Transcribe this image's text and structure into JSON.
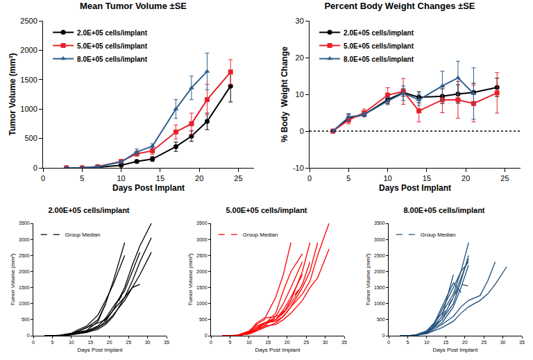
{
  "chart_data": [
    {
      "type": "line",
      "title": "Mean Tumor Volume ±SE",
      "x_label": "Days Post Implant",
      "y_label": "Tumor Volume (mm³)",
      "xlim": [
        0,
        27
      ],
      "xticks": [
        0,
        5,
        10,
        15,
        20,
        25
      ],
      "ylim": [
        0,
        2500
      ],
      "yticks": [
        0,
        500,
        1000,
        1500,
        2000,
        2500
      ],
      "grid": false,
      "legend": "upper left",
      "series": [
        {
          "name": "2.0E+05 cells/implant",
          "color": "#000000",
          "marker": "circle",
          "line_style": "solid",
          "x": [
            3,
            5,
            7,
            10,
            12,
            14,
            17,
            19,
            21,
            24
          ],
          "values": [
            0,
            0,
            10,
            45,
            110,
            150,
            360,
            540,
            790,
            1390
          ],
          "error": [
            0,
            0,
            5,
            10,
            20,
            40,
            80,
            90,
            140,
            270
          ]
        },
        {
          "name": "5.0E+05 cells/implant",
          "color": "#e8202a",
          "marker": "square",
          "line_style": "solid",
          "x": [
            3,
            5,
            7,
            10,
            12,
            14,
            17,
            19,
            21,
            24
          ],
          "values": [
            0,
            0,
            20,
            110,
            240,
            290,
            610,
            750,
            1160,
            1630
          ],
          "error": [
            0,
            0,
            5,
            20,
            40,
            60,
            120,
            180,
            260,
            210
          ]
        },
        {
          "name": "8.0E+05 cells/implant",
          "color": "#2e5e8e",
          "marker": "triangle-up",
          "line_style": "solid",
          "x": [
            3,
            5,
            7,
            10,
            12,
            14,
            17,
            19,
            21
          ],
          "values": [
            0,
            0,
            20,
            100,
            270,
            370,
            1000,
            1360,
            1640
          ],
          "error": [
            0,
            0,
            5,
            20,
            50,
            40,
            160,
            200,
            310
          ]
        }
      ]
    },
    {
      "type": "line",
      "title": "Percent Body Weight Changes ±SE",
      "x_label": "Days Post Implant",
      "y_label": "% Body  Weight Change",
      "xlim": [
        0,
        27
      ],
      "xticks": [
        0,
        5,
        10,
        15,
        20,
        25
      ],
      "ylim": [
        -10,
        30
      ],
      "yticks": [
        -10,
        0,
        10,
        20,
        30
      ],
      "grid": false,
      "legend": "upper left",
      "hline": {
        "y": 0,
        "line_style": "dot"
      },
      "series": [
        {
          "name": "2.0E+05 cells/implant",
          "color": "#000000",
          "marker": "circle",
          "line_style": "solid",
          "x": [
            3,
            5,
            7,
            10,
            12,
            14,
            17,
            19,
            21,
            24
          ],
          "values": [
            0,
            3.5,
            4.5,
            8.5,
            10.5,
            9.2,
            9.5,
            10.1,
            10.5,
            11.9
          ],
          "error": [
            0,
            1,
            0.5,
            1,
            1,
            1.5,
            2,
            2.5,
            2.5,
            2.5
          ]
        },
        {
          "name": "5.0E+05 cells/implant",
          "color": "#e8202a",
          "marker": "square",
          "line_style": "solid",
          "x": [
            3,
            5,
            7,
            10,
            12,
            14,
            17,
            19,
            21,
            24
          ],
          "values": [
            0,
            3,
            5,
            9.8,
            10.8,
            5.5,
            8.5,
            8.5,
            7.5,
            10.4
          ],
          "error": [
            0,
            1,
            1,
            2,
            3.5,
            3,
            3.5,
            5,
            5,
            5.5
          ]
        },
        {
          "name": "8.0E+05 cells/implant",
          "color": "#2e5e8e",
          "marker": "triangle-up",
          "line_style": "solid",
          "x": [
            3,
            5,
            7,
            10,
            12,
            14,
            17,
            19,
            21
          ],
          "values": [
            0,
            3.8,
            4.5,
            8.2,
            10.3,
            8.5,
            12.3,
            14.5,
            10.2
          ],
          "error": [
            0,
            1,
            0.5,
            1,
            2,
            1.5,
            4,
            4.5,
            7
          ]
        }
      ]
    },
    {
      "type": "line",
      "title": "2.00E+05 cells/implant",
      "x_label": "Days Post Implant",
      "y_label": "Tumor Volume (mm³)",
      "xlim": [
        0,
        35
      ],
      "xticks": [
        0,
        5,
        10,
        15,
        20,
        25,
        30,
        35
      ],
      "ylim": [
        0,
        3500
      ],
      "yticks": [
        0,
        500,
        1000,
        1500,
        2000,
        2500,
        3000,
        3500
      ],
      "grid": false,
      "legend": "upper left",
      "color": "#000000",
      "x": [
        3,
        5,
        7,
        10,
        12,
        14,
        17,
        19,
        21,
        24,
        26,
        28,
        31
      ],
      "series": [
        {
          "line_style": "solid",
          "values": [
            0,
            0,
            10,
            60,
            120,
            160,
            450,
            1000,
            null,
            null,
            null,
            null,
            null
          ]
        },
        {
          "line_style": "solid",
          "values": [
            0,
            0,
            10,
            50,
            140,
            250,
            500,
            1000,
            1700,
            2900,
            null,
            null,
            null
          ]
        },
        {
          "line_style": "solid",
          "values": [
            0,
            0,
            20,
            80,
            200,
            300,
            650,
            1100,
            1600,
            2500,
            null,
            null,
            null
          ]
        },
        {
          "line_style": "solid",
          "values": [
            0,
            0,
            10,
            40,
            100,
            150,
            300,
            550,
            900,
            1400,
            2000,
            2600,
            null
          ]
        },
        {
          "line_style": "solid",
          "values": [
            0,
            0,
            10,
            30,
            80,
            120,
            250,
            450,
            800,
            1500,
            2200,
            2800,
            3500
          ]
        },
        {
          "line_style": "solid",
          "values": [
            0,
            0,
            5,
            30,
            60,
            100,
            200,
            350,
            600,
            1200,
            1700,
            2300,
            3050
          ]
        },
        {
          "line_style": "solid",
          "values": [
            0,
            0,
            10,
            40,
            90,
            130,
            250,
            400,
            650,
            1100,
            1500,
            1900,
            2600
          ]
        },
        {
          "line_style": "solid",
          "values": [
            0,
            0,
            10,
            60,
            150,
            250,
            400,
            500,
            800,
            1200,
            1500,
            1600,
            null
          ]
        },
        {
          "name": "Group Median",
          "line_style": "dash",
          "values": [
            0,
            0,
            10,
            40,
            100,
            150,
            300,
            500,
            800,
            1400,
            null,
            null,
            null
          ]
        }
      ]
    },
    {
      "type": "line",
      "title": "5.00E+05 cells/implant",
      "x_label": "Days Post Implant",
      "y_label": "Tumor Volume (mm³)",
      "xlim": [
        0,
        35
      ],
      "xticks": [
        0,
        5,
        10,
        15,
        20,
        25,
        30,
        35
      ],
      "ylim": [
        0,
        3500
      ],
      "yticks": [
        0,
        500,
        1000,
        1500,
        2000,
        2500,
        3000,
        3500
      ],
      "grid": false,
      "legend": "upper left",
      "color": "#ff0000",
      "x": [
        3,
        5,
        7,
        10,
        12,
        14,
        17,
        19,
        21,
        24,
        26,
        28,
        31
      ],
      "series": [
        {
          "line_style": "solid",
          "values": [
            0,
            0,
            20,
            150,
            350,
            500,
            1200,
            1900,
            2900,
            null,
            null,
            null,
            null
          ]
        },
        {
          "line_style": "solid",
          "values": [
            0,
            0,
            20,
            100,
            250,
            350,
            700,
            1400,
            2000,
            2550,
            null,
            null,
            null
          ]
        },
        {
          "line_style": "solid",
          "values": [
            0,
            0,
            10,
            80,
            200,
            300,
            600,
            1000,
            1500,
            2300,
            null,
            null,
            null
          ]
        },
        {
          "line_style": "solid",
          "values": [
            0,
            0,
            10,
            100,
            300,
            400,
            500,
            700,
            1100,
            2000,
            2900,
            null,
            null
          ]
        },
        {
          "line_style": "solid",
          "values": [
            0,
            0,
            10,
            60,
            150,
            250,
            400,
            600,
            900,
            1500,
            2000,
            2900,
            null
          ]
        },
        {
          "line_style": "solid",
          "values": [
            0,
            0,
            10,
            80,
            200,
            400,
            450,
            600,
            900,
            1300,
            1700,
            2500,
            3500
          ]
        },
        {
          "line_style": "solid",
          "values": [
            0,
            0,
            10,
            50,
            150,
            300,
            350,
            500,
            700,
            1100,
            1500,
            1800,
            2700
          ]
        },
        {
          "line_style": "solid",
          "values": [
            0,
            0,
            20,
            120,
            400,
            550,
            600,
            700,
            1000,
            1600,
            2300,
            null,
            null
          ]
        },
        {
          "line_style": "solid",
          "values": [
            0,
            0,
            10,
            60,
            200,
            380,
            500,
            800,
            1200,
            1900,
            null,
            null,
            null
          ]
        },
        {
          "name": "Group Median",
          "line_style": "dash",
          "values": [
            0,
            0,
            10,
            100,
            250,
            400,
            550,
            750,
            1100,
            1600,
            null,
            null,
            null
          ]
        }
      ]
    },
    {
      "type": "line",
      "title": "8.00E+05 cells/implant",
      "x_label": "Days Post Implant",
      "y_label": "Tumor Volume (mm³)",
      "xlim": [
        0,
        35
      ],
      "xticks": [
        0,
        5,
        10,
        15,
        20,
        25,
        30,
        35
      ],
      "ylim": [
        0,
        3500
      ],
      "yticks": [
        0,
        500,
        1000,
        1500,
        2000,
        2500,
        3000,
        3500
      ],
      "grid": false,
      "legend": "upper left",
      "color": "#1f4e78",
      "x": [
        3,
        5,
        7,
        10,
        12,
        14,
        17,
        19,
        21,
        24,
        26,
        28,
        31
      ],
      "series": [
        {
          "line_style": "solid",
          "values": [
            0,
            0,
            20,
            100,
            300,
            600,
            1900,
            null,
            null,
            null,
            null,
            null,
            null
          ]
        },
        {
          "line_style": "solid",
          "values": [
            0,
            0,
            20,
            150,
            400,
            700,
            1300,
            2000,
            2900,
            null,
            null,
            null,
            null
          ]
        },
        {
          "line_style": "solid",
          "values": [
            0,
            0,
            10,
            100,
            300,
            500,
            1000,
            1700,
            2500,
            null,
            null,
            null,
            null
          ]
        },
        {
          "line_style": "solid",
          "values": [
            0,
            0,
            20,
            150,
            350,
            800,
            1500,
            2000,
            2300,
            null,
            null,
            null,
            null
          ]
        },
        {
          "line_style": "solid",
          "values": [
            0,
            0,
            10,
            100,
            250,
            400,
            900,
            1500,
            2200,
            null,
            null,
            null,
            null
          ]
        },
        {
          "line_style": "solid",
          "values": [
            0,
            0,
            20,
            120,
            400,
            900,
            1650,
            1350,
            null,
            null,
            null,
            null,
            null
          ]
        },
        {
          "line_style": "solid",
          "values": [
            0,
            0,
            10,
            80,
            200,
            350,
            600,
            900,
            1100,
            1250,
            1700,
            2300,
            null
          ]
        },
        {
          "line_style": "solid",
          "values": [
            0,
            0,
            10,
            60,
            150,
            250,
            450,
            700,
            900,
            1100,
            1300,
            1600,
            2150
          ]
        },
        {
          "line_style": "solid",
          "values": [
            0,
            0,
            20,
            100,
            280,
            500,
            1200,
            1800,
            2400,
            null,
            null,
            null,
            null
          ]
        },
        {
          "name": "Group Median",
          "line_style": "dash",
          "values": [
            0,
            0,
            20,
            100,
            300,
            600,
            1200,
            1600,
            1550,
            null,
            null,
            null,
            null
          ]
        }
      ]
    }
  ]
}
